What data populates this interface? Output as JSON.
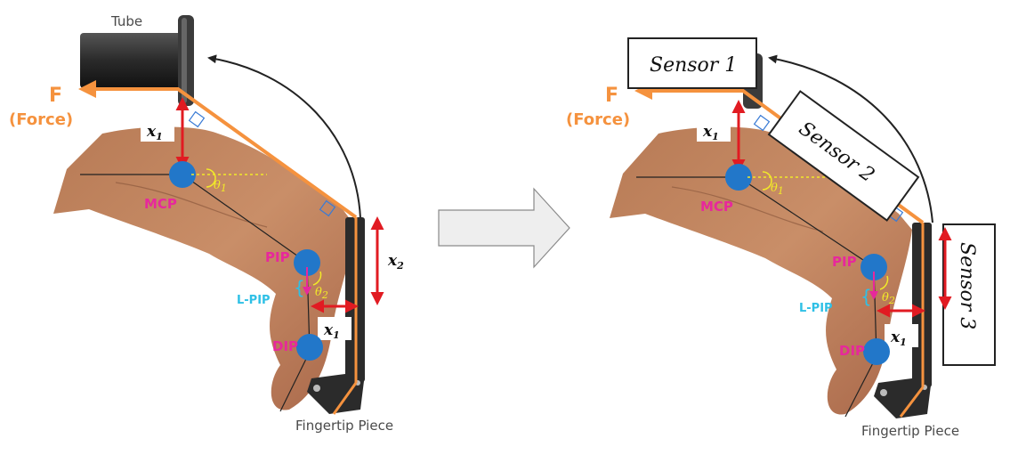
{
  "left_panel": {
    "tube_label": "Tube",
    "force_label": "F",
    "force_sublabel": "(Force)",
    "x1_label_top": "x",
    "x1_sub": "1",
    "x2_label": "x",
    "x2_sub": "2",
    "x1_label_bottom": "x",
    "mcp_label": "MCP",
    "pip_label": "PIP",
    "dip_label": "DIP",
    "lpip_label": "L-PIP",
    "theta1_label": "θ",
    "theta1_sub": "1",
    "theta2_label": "θ",
    "theta2_sub": "2",
    "fingertip_label": "Fingertip Piece"
  },
  "right_panel": {
    "force_label": "F",
    "force_sublabel": "(Force)",
    "x1_label_top": "x",
    "x1_sub": "1",
    "x1_label_bottom": "x",
    "mcp_label": "MCP",
    "pip_label": "PIP",
    "dip_label": "DIP",
    "lpip_label": "L-PIP",
    "theta1_label": "θ",
    "theta1_sub": "1",
    "theta2_label": "θ",
    "theta2_sub": "2",
    "fingertip_label": "Fingertip Piece",
    "sensor1_label": "Sensor 1",
    "sensor2_label": "Sensor 2",
    "sensor3_label": "Sensor 3"
  },
  "colors": {
    "skin": "#c68a63",
    "joint": "#2277c9",
    "force_line": "#f5923e",
    "red_arrow": "#e11b22",
    "magenta": "#e7289c",
    "cyan_label": "#2fc0e6",
    "tube": "#2e2e2e",
    "transition_arrow": "#eeeeee"
  }
}
